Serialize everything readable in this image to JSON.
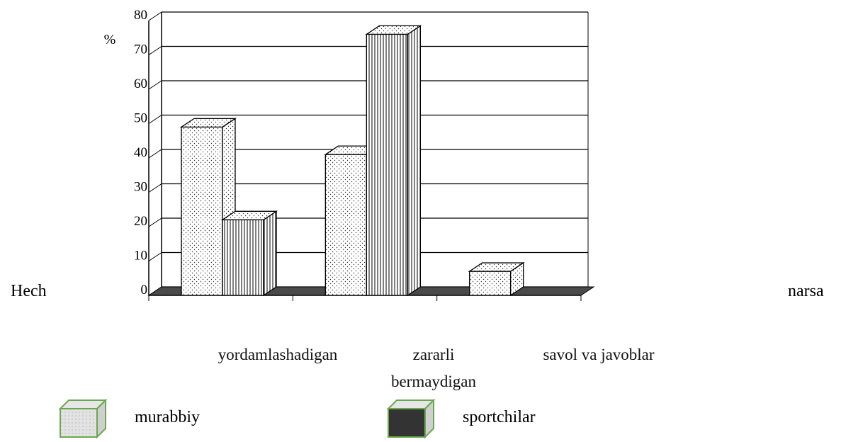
{
  "chart_data": {
    "type": "bar3d",
    "ylabel": "%",
    "categories": [
      "yordamlashadigan",
      "zararli bermaydigan",
      "savol va javoblar"
    ],
    "side_labels": [
      "Hech",
      "narsa"
    ],
    "series": [
      {
        "name": "murabbiy",
        "color": "#e4e4e4",
        "values": [
          49,
          41,
          7
        ]
      },
      {
        "name": "sportchilar",
        "color": "#333333",
        "values": [
          22,
          76,
          null
        ]
      }
    ],
    "ylim": [
      0,
      80
    ],
    "yticks": [
      0,
      10,
      20,
      30,
      40,
      50,
      60,
      70,
      80
    ],
    "grid": true
  }
}
